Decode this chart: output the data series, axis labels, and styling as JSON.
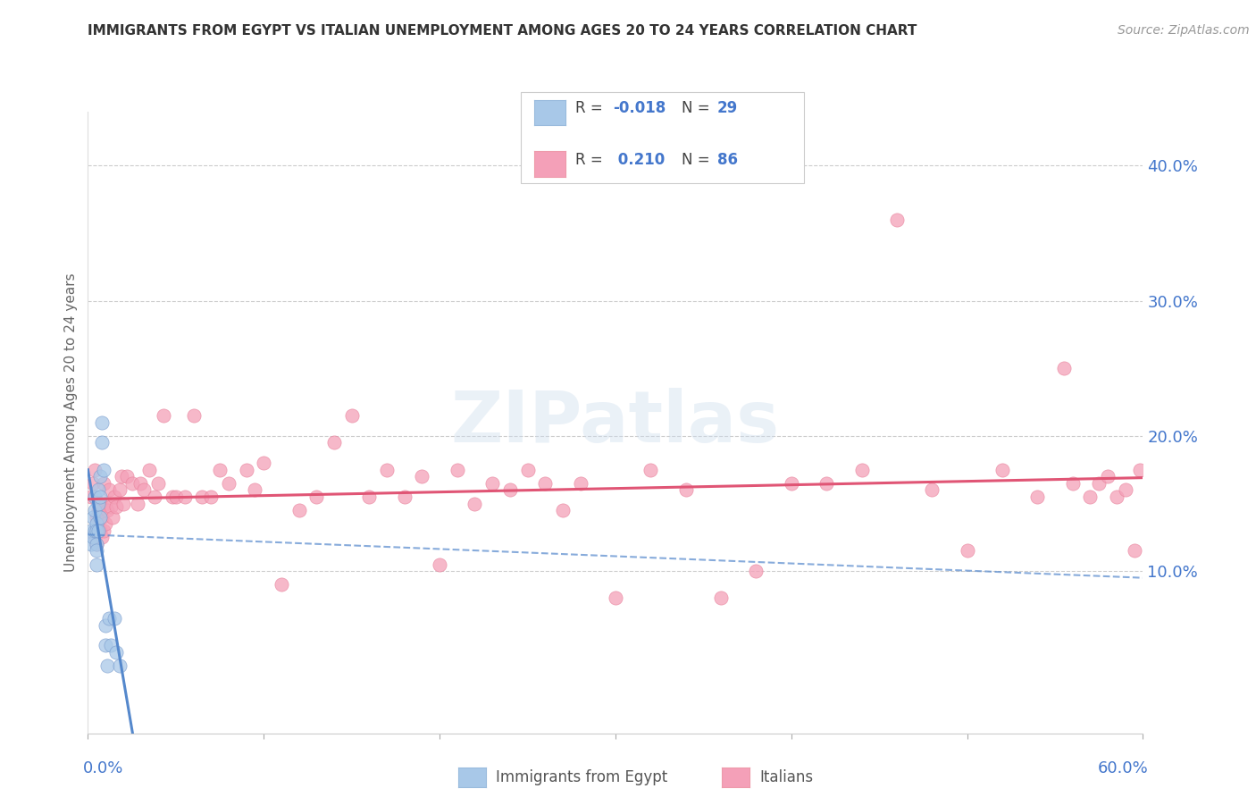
{
  "title": "IMMIGRANTS FROM EGYPT VS ITALIAN UNEMPLOYMENT AMONG AGES 20 TO 24 YEARS CORRELATION CHART",
  "source": "Source: ZipAtlas.com",
  "ylabel": "Unemployment Among Ages 20 to 24 years",
  "xlim": [
    0.0,
    0.6
  ],
  "ylim": [
    -0.02,
    0.44
  ],
  "right_yticks": [
    0.1,
    0.2,
    0.3,
    0.4
  ],
  "right_yticklabels": [
    "10.0%",
    "20.0%",
    "30.0%",
    "40.0%"
  ],
  "color_egypt": "#a8c8e8",
  "color_italy": "#f4a0b8",
  "color_egypt_line": "#5588cc",
  "color_italy_line": "#e05575",
  "color_axis_labels": "#4477cc",
  "background_color": "#ffffff",
  "watermark": "ZIPatlas",
  "egypt_x": [
    0.002,
    0.002,
    0.003,
    0.003,
    0.004,
    0.004,
    0.004,
    0.005,
    0.005,
    0.005,
    0.005,
    0.005,
    0.006,
    0.006,
    0.006,
    0.007,
    0.007,
    0.007,
    0.008,
    0.008,
    0.009,
    0.01,
    0.01,
    0.011,
    0.012,
    0.013,
    0.015,
    0.016,
    0.018
  ],
  "egypt_y": [
    0.13,
    0.12,
    0.14,
    0.125,
    0.155,
    0.145,
    0.13,
    0.135,
    0.13,
    0.12,
    0.115,
    0.105,
    0.16,
    0.15,
    0.13,
    0.17,
    0.155,
    0.14,
    0.21,
    0.195,
    0.175,
    0.06,
    0.045,
    0.03,
    0.065,
    0.045,
    0.065,
    0.04,
    0.03
  ],
  "italy_x": [
    0.002,
    0.003,
    0.004,
    0.004,
    0.005,
    0.005,
    0.005,
    0.006,
    0.006,
    0.007,
    0.007,
    0.008,
    0.008,
    0.009,
    0.009,
    0.01,
    0.01,
    0.011,
    0.012,
    0.013,
    0.014,
    0.015,
    0.016,
    0.018,
    0.019,
    0.02,
    0.022,
    0.025,
    0.028,
    0.03,
    0.032,
    0.035,
    0.038,
    0.04,
    0.043,
    0.048,
    0.05,
    0.055,
    0.06,
    0.065,
    0.07,
    0.075,
    0.08,
    0.09,
    0.095,
    0.1,
    0.11,
    0.12,
    0.13,
    0.14,
    0.15,
    0.16,
    0.17,
    0.18,
    0.19,
    0.2,
    0.21,
    0.22,
    0.23,
    0.24,
    0.25,
    0.26,
    0.27,
    0.28,
    0.3,
    0.32,
    0.34,
    0.36,
    0.38,
    0.4,
    0.42,
    0.44,
    0.46,
    0.48,
    0.5,
    0.52,
    0.54,
    0.555,
    0.56,
    0.57,
    0.575,
    0.58,
    0.585,
    0.59,
    0.595,
    0.598
  ],
  "italy_y": [
    0.155,
    0.165,
    0.175,
    0.125,
    0.14,
    0.13,
    0.12,
    0.145,
    0.13,
    0.15,
    0.13,
    0.14,
    0.125,
    0.165,
    0.13,
    0.15,
    0.135,
    0.145,
    0.16,
    0.148,
    0.14,
    0.155,
    0.148,
    0.16,
    0.17,
    0.15,
    0.17,
    0.165,
    0.15,
    0.165,
    0.16,
    0.175,
    0.155,
    0.165,
    0.215,
    0.155,
    0.155,
    0.155,
    0.215,
    0.155,
    0.155,
    0.175,
    0.165,
    0.175,
    0.16,
    0.18,
    0.09,
    0.145,
    0.155,
    0.195,
    0.215,
    0.155,
    0.175,
    0.155,
    0.17,
    0.105,
    0.175,
    0.15,
    0.165,
    0.16,
    0.175,
    0.165,
    0.145,
    0.165,
    0.08,
    0.175,
    0.16,
    0.08,
    0.1,
    0.165,
    0.165,
    0.175,
    0.36,
    0.16,
    0.115,
    0.175,
    0.155,
    0.25,
    0.165,
    0.155,
    0.165,
    0.17,
    0.155,
    0.16,
    0.115,
    0.175
  ]
}
